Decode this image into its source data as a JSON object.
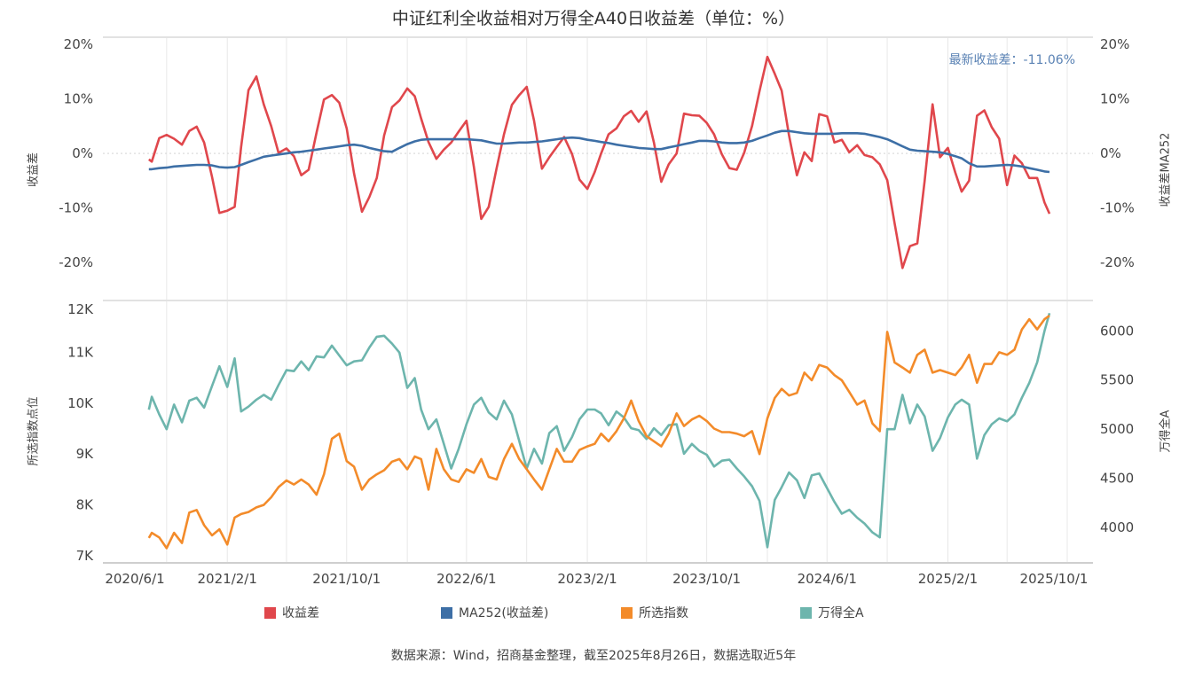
{
  "chart_data": [
    {
      "type": "line",
      "title": "中证红利全收益相对万得全A40日收益差（单位：%）",
      "annotation": "最新收益差：-11.06%",
      "ylabel_left": "收益差",
      "ylabel_right": "收益差MA252",
      "ylim": [
        -26.8,
        21.3
      ],
      "yticks": [
        20,
        10,
        0,
        -10,
        -20
      ],
      "ytick_labels": [
        "20%",
        "10%",
        "0%",
        "-10%",
        "-20%"
      ],
      "zero_line": "dotted",
      "grid": "vertical",
      "series": [
        {
          "name": "收益差",
          "color": "#e0474c",
          "key": "spread"
        },
        {
          "name": "MA252(收益差)",
          "color": "#3d6fa6",
          "key": "ma"
        }
      ]
    },
    {
      "type": "line",
      "ylabel_left": "所选指数点位",
      "ylabel_right": "万得全A",
      "ylim_left": [
        6.86,
        12.0
      ],
      "yticks_left": [
        12,
        11,
        10,
        9,
        8,
        7
      ],
      "ytick_labels_left": [
        "12K",
        "11K",
        "10K",
        "9K",
        "8K",
        "7K"
      ],
      "ylim_right": [
        3640,
        6300
      ],
      "yticks_right": [
        6000,
        5500,
        5000,
        4500,
        4000
      ],
      "ytick_labels_right": [
        "6000",
        "5500",
        "5000",
        "4500",
        "4000"
      ],
      "grid": "vertical",
      "series": [
        {
          "name": "所选指数",
          "color": "#f38b2a",
          "key": "index",
          "axis": "left"
        },
        {
          "name": "万得全A",
          "color": "#6db5ad",
          "key": "wind",
          "axis": "right"
        }
      ]
    }
  ],
  "x_axis": {
    "xlim": [
      "2020-06-01",
      "2025-12-01"
    ],
    "ticks": [
      "2020-06-01",
      "2021-02-01",
      "2021-10-01",
      "2022-06-01",
      "2023-02-01",
      "2023-10-01",
      "2024-06-01",
      "2025-02-01",
      "2025-10-01"
    ],
    "tick_labels": [
      "2020/6/1",
      "2021/2/1",
      "2021/10/1",
      "2022/6/1",
      "2023/2/1",
      "2023/10/1",
      "2024/6/1",
      "2025/2/1",
      "2025/10/1"
    ]
  },
  "dates": [
    "2020-08-26",
    "2020-09-01",
    "2020-09-16",
    "2020-10-01",
    "2020-10-16",
    "2020-11-01",
    "2020-11-16",
    "2020-12-01",
    "2020-12-16",
    "2021-01-01",
    "2021-01-16",
    "2021-02-01",
    "2021-02-16",
    "2021-03-01",
    "2021-03-16",
    "2021-04-01",
    "2021-04-16",
    "2021-05-01",
    "2021-05-16",
    "2021-06-01",
    "2021-06-16",
    "2021-07-01",
    "2021-07-16",
    "2021-08-01",
    "2021-08-16",
    "2021-09-01",
    "2021-09-16",
    "2021-10-01",
    "2021-10-16",
    "2021-11-01",
    "2021-11-16",
    "2021-12-01",
    "2021-12-16",
    "2022-01-01",
    "2022-01-16",
    "2022-02-01",
    "2022-02-16",
    "2022-03-01",
    "2022-03-16",
    "2022-04-01",
    "2022-04-16",
    "2022-05-01",
    "2022-05-16",
    "2022-06-01",
    "2022-06-16",
    "2022-07-01",
    "2022-07-16",
    "2022-08-01",
    "2022-08-16",
    "2022-09-01",
    "2022-09-16",
    "2022-10-01",
    "2022-10-16",
    "2022-11-01",
    "2022-11-16",
    "2022-12-01",
    "2022-12-16",
    "2023-01-01",
    "2023-01-16",
    "2023-02-01",
    "2023-02-16",
    "2023-03-01",
    "2023-03-16",
    "2023-04-01",
    "2023-04-16",
    "2023-05-01",
    "2023-05-16",
    "2023-06-01",
    "2023-06-16",
    "2023-07-01",
    "2023-07-16",
    "2023-08-01",
    "2023-08-16",
    "2023-09-01",
    "2023-09-16",
    "2023-10-01",
    "2023-10-16",
    "2023-11-01",
    "2023-11-16",
    "2023-12-01",
    "2023-12-16",
    "2024-01-01",
    "2024-01-16",
    "2024-02-01",
    "2024-02-16",
    "2024-03-01",
    "2024-03-16",
    "2024-04-01",
    "2024-04-16",
    "2024-05-01",
    "2024-05-16",
    "2024-06-01",
    "2024-06-16",
    "2024-07-01",
    "2024-07-16",
    "2024-08-01",
    "2024-08-16",
    "2024-09-01",
    "2024-09-16",
    "2024-10-01",
    "2024-10-16",
    "2024-11-01",
    "2024-11-16",
    "2024-12-01",
    "2024-12-16",
    "2025-01-01",
    "2025-01-16",
    "2025-02-01",
    "2025-02-16",
    "2025-03-01",
    "2025-03-16",
    "2025-04-01",
    "2025-04-16",
    "2025-05-01",
    "2025-05-16",
    "2025-06-01",
    "2025-06-16",
    "2025-07-01",
    "2025-07-16",
    "2025-08-01",
    "2025-08-16",
    "2025-08-26"
  ],
  "values": {
    "spread": [
      -1.1,
      -1.5,
      2.8,
      3.4,
      2.7,
      1.6,
      4.1,
      4.9,
      2.0,
      -4.3,
      -10.9,
      -10.5,
      -9.8,
      1.2,
      11.6,
      14.1,
      9.0,
      5.0,
      0.1,
      0.9,
      -0.5,
      -4.0,
      -3.0,
      3.8,
      9.9,
      10.7,
      9.3,
      4.6,
      -3.7,
      -10.7,
      -8.0,
      -4.5,
      3.3,
      8.5,
      9.7,
      11.9,
      10.5,
      6.4,
      2.1,
      -1.0,
      0.7,
      2.0,
      4.0,
      6.0,
      -2.5,
      -12.0,
      -9.8,
      -2.7,
      3.5,
      8.9,
      10.7,
      12.2,
      6.0,
      -2.8,
      -0.7,
      1.2,
      3.0,
      -0.1,
      -4.8,
      -6.5,
      -3.4,
      0.0,
      3.5,
      4.6,
      6.8,
      7.8,
      5.8,
      7.7,
      2.0,
      -5.2,
      -2.0,
      0.0,
      7.3,
      7.0,
      6.9,
      5.6,
      3.5,
      -0.2,
      -2.7,
      -3.0,
      0.1,
      5.0,
      11.4,
      17.7,
      14.6,
      11.5,
      3.3,
      -4.0,
      0.2,
      -1.4,
      7.2,
      6.8,
      2.0,
      2.5,
      0.2,
      1.5,
      -0.3,
      -0.7,
      -2.0,
      -4.9,
      -12.8,
      -21.0,
      -17.0,
      -16.5,
      -5.0,
      9.0,
      -0.7,
      1.0,
      -3.5,
      -7.0,
      -5.0,
      6.9,
      7.9,
      4.8,
      2.7,
      -5.8,
      -0.4,
      -1.8,
      -4.5,
      -4.5,
      -9.0,
      -11.06
    ],
    "ma": [
      -2.9,
      -2.9,
      -2.7,
      -2.6,
      -2.4,
      -2.3,
      -2.2,
      -2.1,
      -2.1,
      -2.2,
      -2.5,
      -2.6,
      -2.5,
      -2.1,
      -1.6,
      -1.1,
      -0.6,
      -0.4,
      -0.2,
      0.0,
      0.2,
      0.3,
      0.5,
      0.7,
      0.9,
      1.1,
      1.3,
      1.5,
      1.6,
      1.4,
      1.0,
      0.7,
      0.4,
      0.3,
      1.0,
      1.7,
      2.2,
      2.5,
      2.6,
      2.6,
      2.6,
      2.6,
      2.6,
      2.6,
      2.5,
      2.4,
      2.1,
      1.8,
      1.8,
      1.9,
      2.0,
      2.0,
      2.1,
      2.2,
      2.4,
      2.6,
      2.8,
      2.9,
      2.8,
      2.5,
      2.3,
      2.1,
      1.9,
      1.6,
      1.4,
      1.2,
      1.0,
      0.9,
      0.8,
      0.8,
      1.1,
      1.4,
      1.7,
      2.0,
      2.3,
      2.3,
      2.2,
      2.0,
      1.9,
      1.9,
      2.0,
      2.3,
      2.8,
      3.3,
      3.8,
      4.1,
      4.1,
      3.9,
      3.7,
      3.6,
      3.6,
      3.6,
      3.6,
      3.7,
      3.7,
      3.7,
      3.6,
      3.3,
      3.0,
      2.6,
      2.0,
      1.3,
      0.7,
      0.5,
      0.4,
      0.3,
      0.2,
      -0.1,
      -0.5,
      -0.9,
      -1.8,
      -2.4,
      -2.4,
      -2.3,
      -2.2,
      -2.1,
      -2.2,
      -2.4,
      -2.7,
      -3.0,
      -3.3,
      -3.4
    ],
    "index": [
      7.35,
      7.45,
      7.36,
      7.15,
      7.45,
      7.25,
      7.85,
      7.9,
      7.6,
      7.4,
      7.52,
      7.22,
      7.75,
      7.82,
      7.86,
      7.95,
      8.0,
      8.15,
      8.35,
      8.48,
      8.4,
      8.5,
      8.4,
      8.2,
      8.6,
      9.3,
      9.4,
      8.86,
      8.75,
      8.3,
      8.5,
      8.6,
      8.68,
      8.85,
      8.9,
      8.7,
      8.95,
      8.9,
      8.3,
      9.1,
      8.7,
      8.5,
      8.45,
      8.7,
      8.63,
      8.9,
      8.55,
      8.5,
      8.9,
      9.2,
      8.9,
      8.7,
      8.5,
      8.3,
      8.7,
      9.1,
      8.85,
      8.85,
      9.08,
      9.15,
      9.2,
      9.4,
      9.25,
      9.45,
      9.7,
      10.05,
      9.65,
      9.35,
      9.25,
      9.15,
      9.4,
      9.8,
      9.55,
      9.68,
      9.75,
      9.65,
      9.5,
      9.43,
      9.43,
      9.4,
      9.35,
      9.45,
      9.0,
      9.7,
      10.1,
      10.28,
      10.15,
      10.2,
      10.6,
      10.45,
      10.75,
      10.7,
      10.55,
      10.45,
      10.22,
      9.97,
      10.05,
      9.6,
      9.45,
      11.4,
      10.8,
      10.7,
      10.6,
      10.95,
      11.05,
      10.6,
      10.65,
      10.6,
      10.55,
      10.7,
      10.95,
      10.4,
      10.77,
      10.77,
      11.0,
      10.95,
      11.05,
      11.45,
      11.65,
      11.45,
      11.65,
      11.72
    ],
    "wind": [
      5198,
      5330,
      5150,
      5000,
      5250,
      5070,
      5290,
      5320,
      5220,
      5440,
      5640,
      5430,
      5720,
      5180,
      5230,
      5300,
      5350,
      5300,
      5450,
      5600,
      5590,
      5690,
      5600,
      5740,
      5730,
      5850,
      5750,
      5650,
      5690,
      5700,
      5830,
      5940,
      5950,
      5870,
      5780,
      5420,
      5520,
      5200,
      5000,
      5100,
      4850,
      4600,
      4800,
      5050,
      5250,
      5320,
      5170,
      5100,
      5290,
      5150,
      4880,
      4600,
      4800,
      4650,
      4960,
      5030,
      4780,
      4920,
      5100,
      5200,
      5200,
      5160,
      5040,
      5180,
      5120,
      5010,
      4990,
      4900,
      5010,
      4940,
      5040,
      5050,
      4750,
      4850,
      4780,
      4740,
      4620,
      4680,
      4690,
      4600,
      4520,
      4420,
      4270,
      3800,
      4280,
      4410,
      4560,
      4480,
      4300,
      4530,
      4550,
      4400,
      4260,
      4140,
      4180,
      4100,
      4040,
      3950,
      3900,
      5000,
      5000,
      5350,
      5060,
      5250,
      5130,
      4780,
      4910,
      5120,
      5250,
      5300,
      5250,
      4700,
      4940,
      5050,
      5110,
      5080,
      5150,
      5320,
      5470,
      5680,
      6000,
      6180
    ]
  },
  "legend": [
    {
      "label": "收益差",
      "color": "#e0474c"
    },
    {
      "label": "MA252(收益差)",
      "color": "#3d6fa6"
    },
    {
      "label": "所选指数",
      "color": "#f38b2a"
    },
    {
      "label": "万得全A",
      "color": "#6db5ad"
    }
  ],
  "footer": "数据来源：Wind，招商基金整理，截至2025年8月26日，数据选取近5年"
}
